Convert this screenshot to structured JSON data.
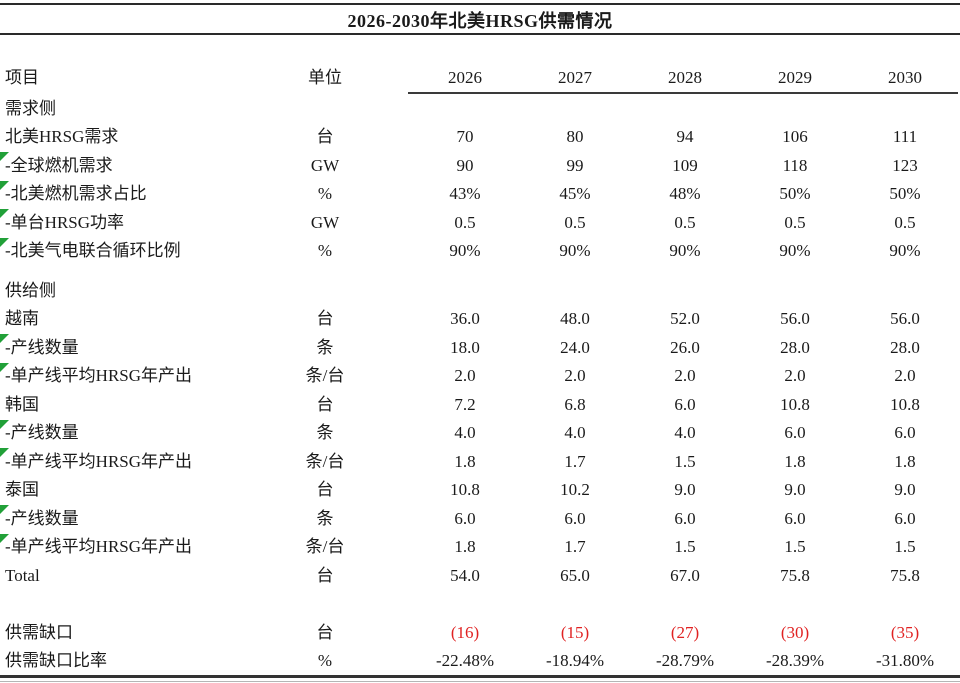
{
  "title": "2026-2030年北美HRSG供需情况",
  "colors": {
    "negative_red": "#e02222",
    "flag_green": "#21a038",
    "text": "#1a1a1a"
  },
  "table": {
    "header": {
      "item": "项目",
      "unit": "单位",
      "years": [
        "2026",
        "2027",
        "2028",
        "2029",
        "2030"
      ]
    },
    "rows": [
      {
        "type": "section",
        "label": "需求侧"
      },
      {
        "type": "data",
        "label": "北美HRSG需求",
        "unit": "台",
        "values": [
          "70",
          "80",
          "94",
          "106",
          "111"
        ],
        "flag": false
      },
      {
        "type": "data",
        "label": "-全球燃机需求",
        "unit": "GW",
        "values": [
          "90",
          "99",
          "109",
          "118",
          "123"
        ],
        "flag": true
      },
      {
        "type": "data",
        "label": "-北美燃机需求占比",
        "unit": "%",
        "values": [
          "43%",
          "45%",
          "48%",
          "50%",
          "50%"
        ],
        "flag": true
      },
      {
        "type": "data",
        "label": "-单台HRSG功率",
        "unit": "GW",
        "values": [
          "0.5",
          "0.5",
          "0.5",
          "0.5",
          "0.5"
        ],
        "flag": true
      },
      {
        "type": "data",
        "label": "-北美气电联合循环比例",
        "unit": "%",
        "values": [
          "90%",
          "90%",
          "90%",
          "90%",
          "90%"
        ],
        "flag": true
      },
      {
        "type": "spacer-small"
      },
      {
        "type": "section",
        "label": "供给侧"
      },
      {
        "type": "data",
        "label": "越南",
        "unit": "台",
        "values": [
          "36.0",
          "48.0",
          "52.0",
          "56.0",
          "56.0"
        ],
        "flag": false
      },
      {
        "type": "data",
        "label": "-产线数量",
        "unit": "条",
        "values": [
          "18.0",
          "24.0",
          "26.0",
          "28.0",
          "28.0"
        ],
        "flag": true
      },
      {
        "type": "data",
        "label": "-单产线平均HRSG年产出",
        "unit": "条/台",
        "values": [
          "2.0",
          "2.0",
          "2.0",
          "2.0",
          "2.0"
        ],
        "flag": true
      },
      {
        "type": "data",
        "label": "韩国",
        "unit": "台",
        "values": [
          "7.2",
          "6.8",
          "6.0",
          "10.8",
          "10.8"
        ],
        "flag": false
      },
      {
        "type": "data",
        "label": "-产线数量",
        "unit": "条",
        "values": [
          "4.0",
          "4.0",
          "4.0",
          "6.0",
          "6.0"
        ],
        "flag": true
      },
      {
        "type": "data",
        "label": "-单产线平均HRSG年产出",
        "unit": "条/台",
        "values": [
          "1.8",
          "1.7",
          "1.5",
          "1.8",
          "1.8"
        ],
        "flag": true
      },
      {
        "type": "data",
        "label": "泰国",
        "unit": "台",
        "values": [
          "10.8",
          "10.2",
          "9.0",
          "9.0",
          "9.0"
        ],
        "flag": false
      },
      {
        "type": "data",
        "label": "-产线数量",
        "unit": "条",
        "values": [
          "6.0",
          "6.0",
          "6.0",
          "6.0",
          "6.0"
        ],
        "flag": true
      },
      {
        "type": "data",
        "label": "-单产线平均HRSG年产出",
        "unit": "条/台",
        "values": [
          "1.8",
          "1.7",
          "1.5",
          "1.5",
          "1.5"
        ],
        "flag": true
      },
      {
        "type": "data",
        "label": "Total",
        "unit": "台",
        "values": [
          "54.0",
          "65.0",
          "67.0",
          "75.8",
          "75.8"
        ],
        "flag": false
      },
      {
        "type": "spacer-large"
      },
      {
        "type": "data",
        "label": "供需缺口",
        "unit": "台",
        "values": [
          "(16)",
          "(15)",
          "(27)",
          "(30)",
          "(35)"
        ],
        "flag": false,
        "value_color": "negative_red"
      },
      {
        "type": "data",
        "label": "供需缺口比率",
        "unit": "%",
        "values": [
          "-22.48%",
          "-18.94%",
          "-28.79%",
          "-28.39%",
          "-31.80%"
        ],
        "flag": false
      }
    ]
  }
}
